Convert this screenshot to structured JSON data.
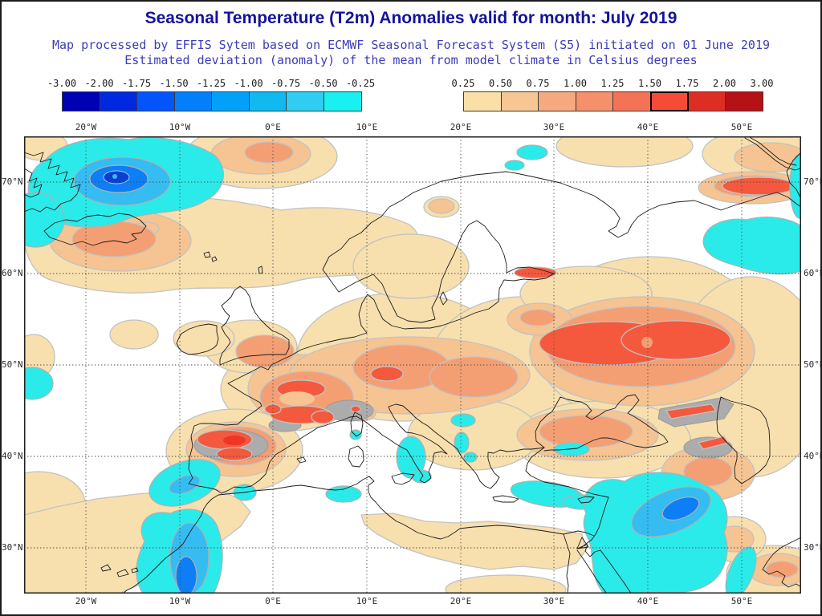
{
  "header": {
    "title": "Seasonal Temperature (T2m) Anomalies valid for month: July 2019",
    "subtitle_line1": "Map processed by EFFIS Sytem based on ECMWF Seasonal Forecast System (S5) initiated on 01 June 2019",
    "subtitle_line2": "Estimated deviation (anomaly) of the mean from model climate in Celsius degrees",
    "title_color": "#15129e",
    "subtitle_color": "#3c3cb8"
  },
  "legend": {
    "units": "Celsius degrees anomaly",
    "negative": {
      "tick_labels": [
        "-3.00",
        "-2.00",
        "-1.75",
        "-1.50",
        "-1.25",
        "-1.00",
        "-0.75",
        "-0.50",
        "-0.25"
      ],
      "cell_colors": [
        "#0000b4",
        "#0028e0",
        "#0355fb",
        "#037ffb",
        "#02a1f9",
        "#10b9f0",
        "#2fcdf2",
        "#19f0f0"
      ]
    },
    "positive": {
      "tick_labels": [
        "0.25",
        "0.50",
        "0.75",
        "1.00",
        "1.25",
        "1.50",
        "1.75",
        "2.00",
        "3.00"
      ],
      "cell_colors": [
        "#fadfa8",
        "#f6c693",
        "#f5a97e",
        "#f4916b",
        "#f47356",
        "#f74b38",
        "#de2d22",
        "#b51117"
      ],
      "highlight_cell_index": 5
    }
  },
  "map": {
    "lon_labels": [
      "20°W",
      "10°W",
      "0°E",
      "10°E",
      "20°E",
      "30°E",
      "40°E",
      "50°E"
    ],
    "lat_labels": [
      "70°N",
      "60°N",
      "50°N",
      "40°N",
      "30°N"
    ],
    "palette": {
      "warm_tan": "#f7dfae",
      "warm_orange": "#f5c492",
      "warm_salmon": "#f49f73",
      "warm_red": "#f4593e",
      "warm_deep_red": "#ee3526",
      "cold_cyan": "#2aebe9",
      "cold_blue_light": "#35bcf1",
      "cold_blue_mid": "#0d7ef6",
      "cold_blue_dark": "#0b3fd0",
      "terrain_gray": "#acacac",
      "sea": "#ffffff"
    }
  }
}
